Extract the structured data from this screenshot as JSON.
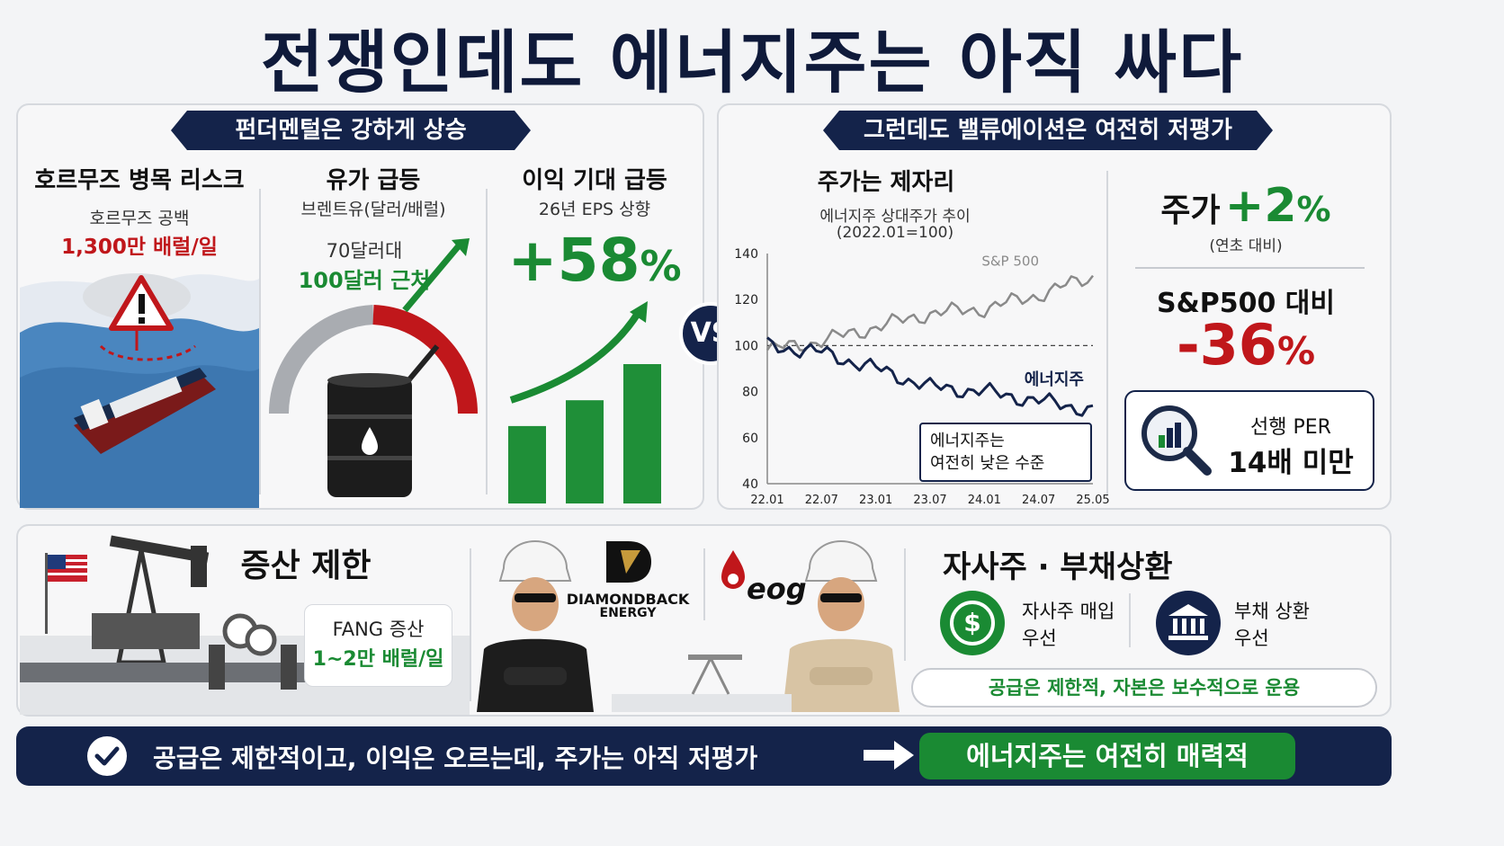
{
  "title": "전쟁인데도 에너지주는 아직 싸다",
  "left_panel": {
    "ribbon": "펀더멘털은 강하게 상승",
    "col1": {
      "heading": "호르무즈 병목 리스크",
      "sub": "호르무즈 공백",
      "value": "1,300만 배럴/일"
    },
    "col2": {
      "heading": "유가 급등",
      "sub": "브렌트유(달러/배럴)",
      "line1": "70달러대",
      "line2": "100달러 근처"
    },
    "col3": {
      "heading": "이익 기대 급등",
      "sub": "26년 EPS 상향",
      "value": "+58",
      "unit": "%",
      "bars": [
        0.3,
        0.4,
        0.54
      ]
    }
  },
  "vs": "VS",
  "right_panel": {
    "ribbon": "그런데도 밸류에이션은 여전히 저평가",
    "chart_heading": "주가는 제자리",
    "chart_sub1": "에너지주 상대주가 추이",
    "chart_sub2": "(2022.01=100)",
    "callout_line1": "에너지주는",
    "callout_line2": "여전히 낮은 수준",
    "stat1_label": "주가",
    "stat1_value": "+2",
    "stat1_unit": "%",
    "stat1_note": "(연초 대비)",
    "stat2_label": "S&P500 대비",
    "stat2_value": "-36",
    "stat2_unit": "%",
    "per_line1": "선행 PER",
    "per_line2": "14배 미만"
  },
  "chart_data": {
    "type": "line",
    "x": [
      "22.01",
      "22.07",
      "23.01",
      "23.07",
      "24.01",
      "24.07",
      "25.05"
    ],
    "yticks": [
      "140",
      "120",
      "100",
      "80",
      "60",
      "40"
    ],
    "ylim": [
      40,
      140
    ],
    "reference_line": 100,
    "series": [
      {
        "name": "S&P 500",
        "color": "#8a8a8a",
        "values": [
          98,
          102,
          108,
          114,
          116,
          122,
          130
        ]
      },
      {
        "name": "에너지주",
        "color": "#14234a",
        "values": [
          100,
          97,
          90,
          82,
          80,
          76,
          72
        ]
      }
    ]
  },
  "bottom_panel": {
    "prod_heading": "증산 제한",
    "fang_label": "FANG 증산",
    "fang_value": "1~2만 배럴/일",
    "company1_line1": "DIAMONDBACK",
    "company1_line2": "ENERGY",
    "company2": "eog",
    "buyback_heading": "자사주 · 부채상환",
    "item1_line1": "자사주 매입",
    "item1_line2": "우선",
    "item2_line1": "부채 상환",
    "item2_line2": "우선",
    "pill": "공급은 제한적, 자본은 보수적으로 운용"
  },
  "footer": {
    "text": "공급은 제한적이고, 이익은 오르는데, 주가는 아직 저평가",
    "conclusion": "에너지주는 여전히 매력적"
  },
  "colors": {
    "navy": "#14234a",
    "green": "#1a8a33",
    "red": "#c0171b",
    "gray": "#8a8a8a"
  }
}
